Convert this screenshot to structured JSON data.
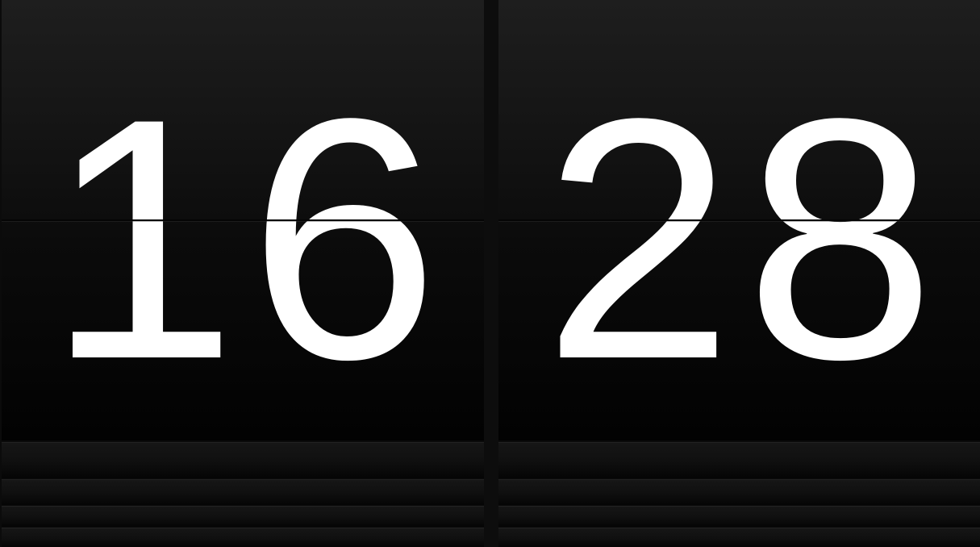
{
  "clock": {
    "hours": "16",
    "minutes": "28"
  }
}
